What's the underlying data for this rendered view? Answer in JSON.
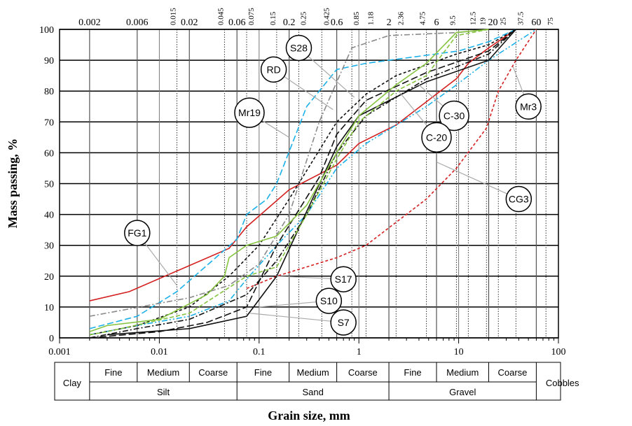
{
  "chart_data": {
    "type": "line",
    "title": "",
    "xlabel": "Grain size, mm",
    "ylabel": "Mass passing, %",
    "xscale": "log",
    "xlim": [
      0.001,
      100
    ],
    "ylim": [
      0,
      100
    ],
    "x_ticks": [
      "0.001",
      "0.01",
      "0.1",
      "1",
      "10",
      "100"
    ],
    "y_ticks": [
      "0",
      "10",
      "20",
      "30",
      "40",
      "50",
      "60",
      "70",
      "80",
      "90",
      "100"
    ],
    "top_ticks_major": [
      "0.002",
      "0.006",
      "0.02",
      "0.06",
      "0.2",
      "0.6",
      "2",
      "6",
      "20",
      "60"
    ],
    "top_ticks_sieve": [
      "0.015",
      "0.045",
      "0.075",
      "0.15",
      "0.25",
      "0.425",
      "0.85",
      "1.18",
      "2.36",
      "4.75",
      "9.5",
      "12.5",
      "19",
      "25",
      "37.5",
      "75"
    ],
    "series": [
      {
        "name": "FG1",
        "color": "#d42020",
        "dash": "",
        "points": [
          [
            0.002,
            12
          ],
          [
            0.005,
            15
          ],
          [
            0.05,
            29
          ],
          [
            0.075,
            36
          ],
          [
            0.2,
            48
          ],
          [
            0.6,
            56
          ],
          [
            1,
            63
          ],
          [
            2.36,
            69
          ],
          [
            9.5,
            84
          ],
          [
            12.5,
            89
          ],
          [
            20,
            94
          ],
          [
            37.5,
            100
          ]
        ]
      },
      {
        "name": "CG3",
        "color": "#d42020",
        "dash": "4 3",
        "points": [
          [
            0.075,
            16
          ],
          [
            0.15,
            20
          ],
          [
            0.6,
            26
          ],
          [
            1.18,
            30
          ],
          [
            4.75,
            45
          ],
          [
            9.5,
            55
          ],
          [
            19,
            68
          ],
          [
            25,
            80
          ],
          [
            37.5,
            90
          ],
          [
            60,
            100
          ]
        ]
      },
      {
        "name": "Mr19",
        "color": "#1ab0e8",
        "dash": "9 4",
        "points": [
          [
            0.002,
            3
          ],
          [
            0.006,
            7
          ],
          [
            0.015,
            15
          ],
          [
            0.06,
            32
          ],
          [
            0.075,
            40
          ],
          [
            0.12,
            45
          ],
          [
            0.15,
            50
          ],
          [
            0.3,
            75
          ],
          [
            0.6,
            87
          ],
          [
            1.18,
            89
          ],
          [
            10,
            93
          ],
          [
            20,
            96
          ],
          [
            37.5,
            100
          ]
        ]
      },
      {
        "name": "Mr3",
        "color": "#1ab0e8",
        "dash": "8 3 2 3 2 3",
        "points": [
          [
            0.002,
            1
          ],
          [
            0.006,
            4
          ],
          [
            0.02,
            7
          ],
          [
            0.05,
            12
          ],
          [
            0.075,
            19
          ],
          [
            0.15,
            30
          ],
          [
            0.3,
            40
          ],
          [
            0.6,
            55
          ],
          [
            1.18,
            63
          ],
          [
            4.75,
            75
          ],
          [
            9.5,
            82
          ],
          [
            20,
            90
          ],
          [
            60,
            100
          ]
        ]
      },
      {
        "name": "S7",
        "color": "#111111",
        "dash": "",
        "points": [
          [
            0.003,
            1
          ],
          [
            0.02,
            3
          ],
          [
            0.075,
            7
          ],
          [
            0.15,
            20
          ],
          [
            0.6,
            62
          ],
          [
            1,
            72
          ],
          [
            4.75,
            83
          ],
          [
            20,
            90
          ],
          [
            37.5,
            100
          ]
        ]
      },
      {
        "name": "S10",
        "color": "#111111",
        "dash": "10 4",
        "points": [
          [
            0.002,
            0
          ],
          [
            0.01,
            2
          ],
          [
            0.03,
            5
          ],
          [
            0.075,
            10
          ],
          [
            0.15,
            30
          ],
          [
            0.4,
            52
          ],
          [
            0.6,
            66
          ],
          [
            1.18,
            77
          ],
          [
            4.75,
            86
          ],
          [
            20,
            93
          ],
          [
            37.5,
            100
          ]
        ]
      },
      {
        "name": "S17",
        "color": "#111111",
        "dash": "8 3 2 3",
        "points": [
          [
            0.002,
            0
          ],
          [
            0.006,
            3
          ],
          [
            0.02,
            6
          ],
          [
            0.075,
            14
          ],
          [
            0.15,
            25
          ],
          [
            0.3,
            40
          ],
          [
            0.6,
            60
          ],
          [
            1.18,
            72
          ],
          [
            4.75,
            84
          ],
          [
            20,
            92
          ],
          [
            37.5,
            100
          ]
        ]
      },
      {
        "name": "S28",
        "color": "#8a8a8a",
        "dash": "8 3 2 3",
        "points": [
          [
            0.002,
            7
          ],
          [
            0.02,
            13
          ],
          [
            0.05,
            17
          ],
          [
            0.1,
            24
          ],
          [
            0.2,
            40
          ],
          [
            0.4,
            70
          ],
          [
            0.85,
            94
          ],
          [
            2,
            98
          ],
          [
            10,
            99
          ],
          [
            20,
            100
          ]
        ]
      },
      {
        "name": "RD",
        "color": "#111111",
        "dash": "4 3",
        "points": [
          [
            0.002,
            1
          ],
          [
            0.006,
            4
          ],
          [
            0.02,
            10
          ],
          [
            0.05,
            20
          ],
          [
            0.1,
            30
          ],
          [
            0.2,
            45
          ],
          [
            0.6,
            70
          ],
          [
            1.18,
            79
          ],
          [
            2.36,
            85
          ],
          [
            9.5,
            92
          ],
          [
            20,
            95
          ],
          [
            37.5,
            100
          ]
        ]
      },
      {
        "name": "C-30",
        "color": "#86c440",
        "dash": "",
        "points": [
          [
            0.002,
            2
          ],
          [
            0.003,
            4
          ],
          [
            0.01,
            6
          ],
          [
            0.03,
            14
          ],
          [
            0.045,
            20
          ],
          [
            0.05,
            26
          ],
          [
            0.075,
            30
          ],
          [
            0.15,
            33
          ],
          [
            0.3,
            43
          ],
          [
            0.6,
            60
          ],
          [
            1,
            72
          ],
          [
            2.36,
            82
          ],
          [
            4.75,
            89
          ],
          [
            9.5,
            99
          ],
          [
            20,
            100
          ]
        ]
      },
      {
        "name": "C-20",
        "color": "#86c440",
        "dash": "6 3",
        "points": [
          [
            0.002,
            1
          ],
          [
            0.003,
            2
          ],
          [
            0.02,
            8
          ],
          [
            0.075,
            20
          ],
          [
            0.15,
            23
          ],
          [
            0.3,
            40
          ],
          [
            0.6,
            58
          ],
          [
            1,
            70
          ],
          [
            2.36,
            80
          ],
          [
            4.75,
            85
          ],
          [
            9.5,
            98
          ],
          [
            20,
            100
          ]
        ]
      }
    ],
    "annotations": [
      {
        "text": "S28",
        "at": [
          0.25,
          94
        ],
        "target": [
          0.9,
          78
        ]
      },
      {
        "text": "RD",
        "at": [
          0.14,
          87
        ],
        "target": [
          0.55,
          74
        ]
      },
      {
        "text": "Mr19",
        "at": [
          0.08,
          73
        ],
        "target": [
          0.2,
          65
        ]
      },
      {
        "text": "FG1",
        "at": [
          0.006,
          34
        ],
        "target": [
          0.015,
          17
        ]
      },
      {
        "text": "S17",
        "at": [
          0.7,
          19
        ],
        "target": [
          0.15,
          20
        ]
      },
      {
        "text": "S10",
        "at": [
          0.5,
          12
        ],
        "target": [
          0.1,
          10
        ]
      },
      {
        "text": "S7",
        "at": [
          0.7,
          5
        ],
        "target": [
          0.08,
          8
        ]
      },
      {
        "text": "C-30",
        "at": [
          9,
          72
        ],
        "target": [
          4,
          82
        ]
      },
      {
        "text": "C-20",
        "at": [
          6,
          65
        ],
        "target": [
          2.5,
          80
        ]
      },
      {
        "text": "CG3",
        "at": [
          40,
          45
        ],
        "target": [
          6,
          57
        ]
      },
      {
        "text": "Mr3",
        "at": [
          50,
          75
        ],
        "target": [
          35,
          88
        ]
      }
    ],
    "classification": {
      "top": [
        "Fine",
        "Medium",
        "Coarse",
        "Fine",
        "Medium",
        "Coarse",
        "Fine",
        "Medium",
        "Coarse"
      ],
      "bottom": [
        "Clay",
        "Silt",
        "Sand",
        "Gravel",
        "Cobbles"
      ]
    },
    "grid": true,
    "legend": "none"
  }
}
